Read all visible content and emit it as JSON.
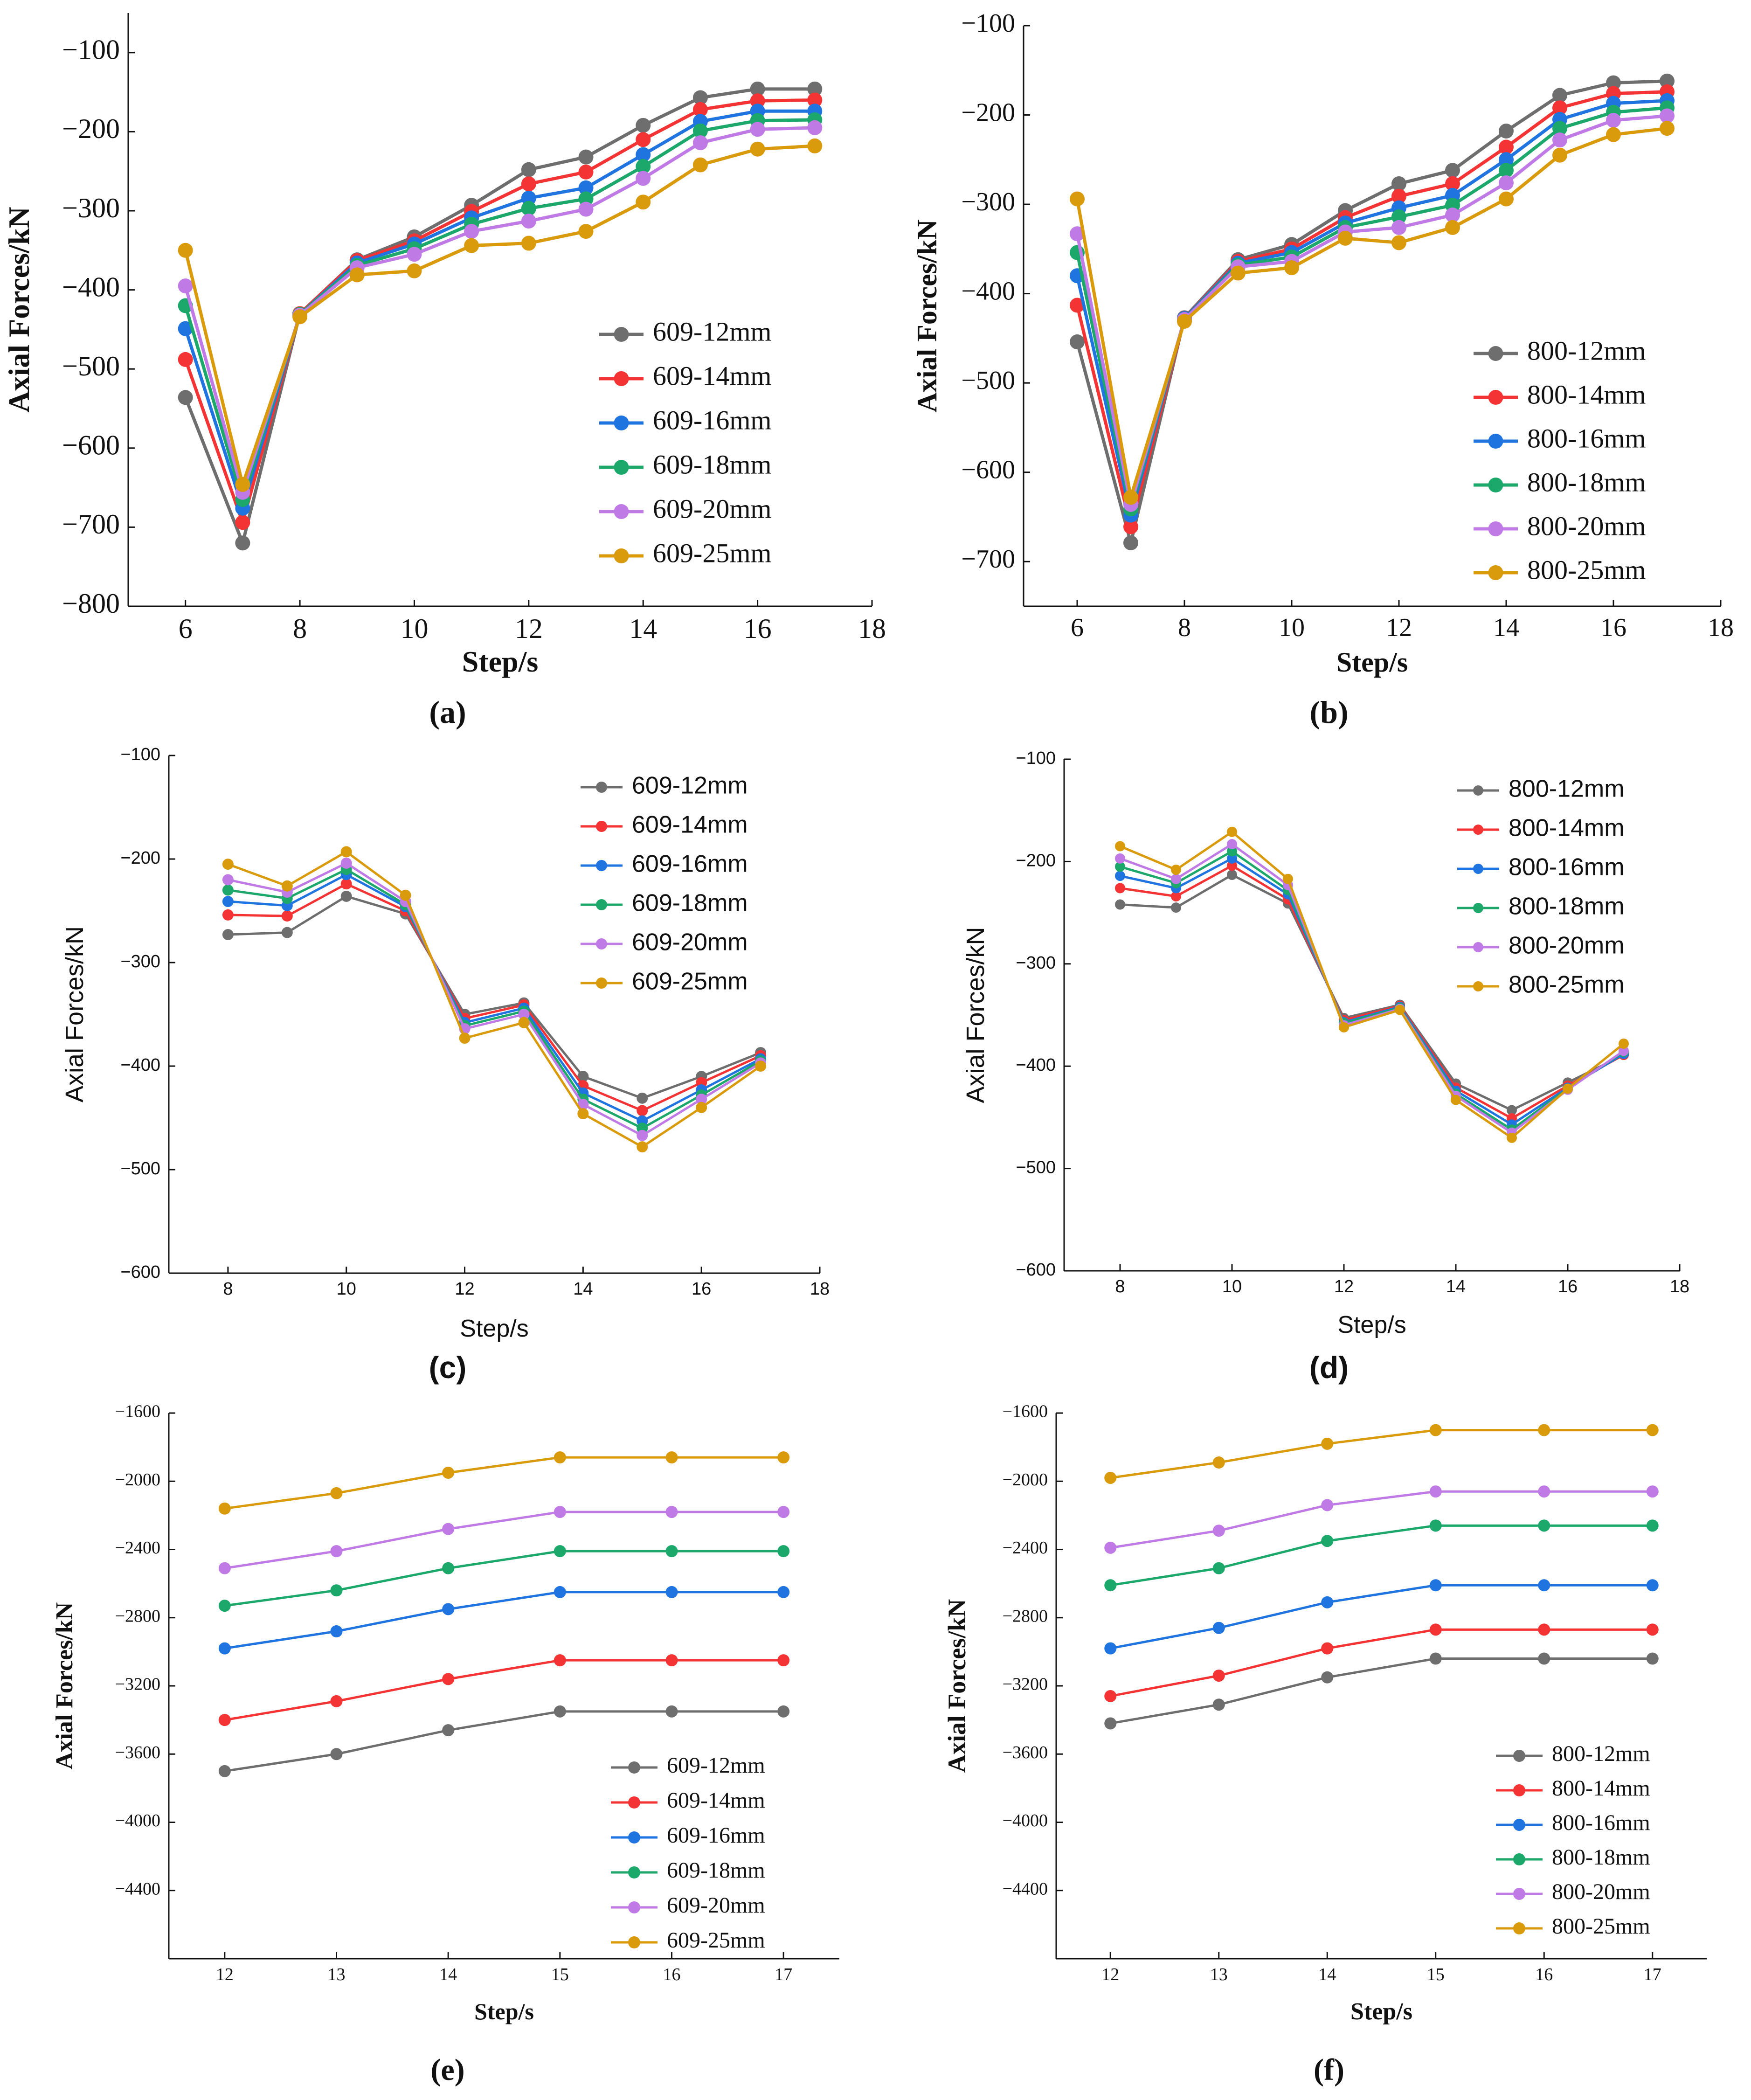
{
  "figure": {
    "colors": {
      "609-12mm": "#6e6e6e",
      "609-14mm": "#f43434",
      "609-16mm": "#1f74e0",
      "609-18mm": "#1ca86a",
      "609-20mm": "#c07ae6",
      "609-25mm": "#d99a0c",
      "800-12mm": "#6e6e6e",
      "800-14mm": "#f43434",
      "800-16mm": "#1f74e0",
      "800-18mm": "#1ca86a",
      "800-20mm": "#c07ae6",
      "800-25mm": "#d99a0c"
    }
  },
  "chart_data": [
    {
      "id": "a",
      "type": "line",
      "caption": "(a)",
      "xlabel": "Step/s",
      "ylabel": "Axial Forces/kN",
      "xlim": [
        5,
        18
      ],
      "ylim": [
        -800,
        -50
      ],
      "xticks": [
        6,
        8,
        10,
        12,
        14,
        16,
        18
      ],
      "yticks": [
        -800,
        -700,
        -600,
        -500,
        -400,
        -300,
        -200,
        -100
      ],
      "legend_position": "bottom-right",
      "x": [
        6,
        7,
        8,
        9,
        10,
        11,
        12,
        13,
        14,
        15,
        16,
        17
      ],
      "series": [
        {
          "name": "609-12mm",
          "values": [
            -536,
            -720,
            -430,
            -362,
            -333,
            -293,
            -248,
            -232,
            -192,
            -157,
            -146,
            -146
          ]
        },
        {
          "name": "609-14mm",
          "values": [
            -488,
            -694,
            -430,
            -363,
            -338,
            -301,
            -266,
            -251,
            -210,
            -172,
            -161,
            -160
          ]
        },
        {
          "name": "609-16mm",
          "values": [
            -449,
            -676,
            -431,
            -366,
            -342,
            -309,
            -284,
            -271,
            -229,
            -187,
            -174,
            -174
          ]
        },
        {
          "name": "609-18mm",
          "values": [
            -420,
            -665,
            -431,
            -369,
            -348,
            -317,
            -297,
            -285,
            -244,
            -199,
            -186,
            -185
          ]
        },
        {
          "name": "609-20mm",
          "values": [
            -395,
            -656,
            -432,
            -372,
            -355,
            -326,
            -313,
            -298,
            -259,
            -214,
            -197,
            -195
          ]
        },
        {
          "name": "609-25mm",
          "values": [
            -350,
            -646,
            -434,
            -381,
            -376,
            -344,
            -341,
            -326,
            -289,
            -242,
            -222,
            -218
          ]
        }
      ]
    },
    {
      "id": "b",
      "type": "line",
      "caption": "(b)",
      "xlabel": "Step/s",
      "ylabel": "Axial Forces/kN",
      "xlim": [
        5,
        18
      ],
      "ylim": [
        -750,
        -100
      ],
      "xticks": [
        6,
        8,
        10,
        12,
        14,
        16,
        18
      ],
      "yticks": [
        -700,
        -600,
        -500,
        -400,
        -300,
        -200,
        -100
      ],
      "legend_position": "bottom-right",
      "x": [
        6,
        7,
        8,
        9,
        10,
        11,
        12,
        13,
        14,
        15,
        16,
        17
      ],
      "series": [
        {
          "name": "800-12mm",
          "values": [
            -454,
            -679,
            -427,
            -362,
            -345,
            -307,
            -277,
            -262,
            -218,
            -178,
            -164,
            -162
          ]
        },
        {
          "name": "800-14mm",
          "values": [
            -413,
            -661,
            -428,
            -364,
            -350,
            -315,
            -291,
            -277,
            -236,
            -192,
            -176,
            -174
          ]
        },
        {
          "name": "800-16mm",
          "values": [
            -380,
            -648,
            -428,
            -366,
            -354,
            -321,
            -304,
            -290,
            -250,
            -205,
            -187,
            -184
          ]
        },
        {
          "name": "800-18mm",
          "values": [
            -354,
            -641,
            -429,
            -368,
            -359,
            -326,
            -314,
            -301,
            -262,
            -215,
            -197,
            -192
          ]
        },
        {
          "name": "800-20mm",
          "values": [
            -333,
            -636,
            -429,
            -370,
            -364,
            -331,
            -326,
            -312,
            -276,
            -228,
            -206,
            -201
          ]
        },
        {
          "name": "800-25mm",
          "values": [
            -294,
            -628,
            -431,
            -377,
            -371,
            -338,
            -343,
            -326,
            -294,
            -245,
            -222,
            -215
          ]
        }
      ]
    },
    {
      "id": "c",
      "type": "line",
      "caption": "(c)",
      "xlabel": "Step/s",
      "ylabel": "Axial Forces/kN",
      "xlim": [
        7,
        18
      ],
      "ylim": [
        -600,
        -100
      ],
      "xticks": [
        8,
        10,
        12,
        14,
        16,
        18
      ],
      "yticks": [
        -600,
        -500,
        -400,
        -300,
        -200,
        -100
      ],
      "legend_position": "top-right",
      "x": [
        8,
        9,
        10,
        11,
        12,
        13,
        14,
        15,
        16,
        17
      ],
      "series": [
        {
          "name": "609-12mm",
          "values": [
            -273,
            -271,
            -236,
            -253,
            -350,
            -339,
            -410,
            -431,
            -410,
            -387
          ]
        },
        {
          "name": "609-14mm",
          "values": [
            -254,
            -255,
            -224,
            -250,
            -354,
            -341,
            -419,
            -443,
            -416,
            -390
          ]
        },
        {
          "name": "609-16mm",
          "values": [
            -241,
            -245,
            -215,
            -246,
            -358,
            -344,
            -426,
            -453,
            -423,
            -393
          ]
        },
        {
          "name": "609-18mm",
          "values": [
            -230,
            -238,
            -210,
            -244,
            -361,
            -347,
            -432,
            -460,
            -428,
            -395
          ]
        },
        {
          "name": "609-20mm",
          "values": [
            -220,
            -232,
            -204,
            -241,
            -364,
            -350,
            -437,
            -467,
            -432,
            -397
          ]
        },
        {
          "name": "609-25mm",
          "values": [
            -205,
            -226,
            -193,
            -235,
            -373,
            -358,
            -446,
            -478,
            -440,
            -400
          ]
        }
      ]
    },
    {
      "id": "d",
      "type": "line",
      "caption": "(d)",
      "xlabel": "Step/s",
      "ylabel": "Axial Forces/kN",
      "xlim": [
        7,
        18
      ],
      "ylim": [
        -600,
        -100
      ],
      "xticks": [
        8,
        10,
        12,
        14,
        16,
        18
      ],
      "yticks": [
        -600,
        -500,
        -400,
        -300,
        -200,
        -100
      ],
      "legend_position": "top-right",
      "x": [
        8,
        9,
        10,
        11,
        12,
        13,
        14,
        15,
        16,
        17
      ],
      "series": [
        {
          "name": "800-12mm",
          "values": [
            -242,
            -245,
            -213,
            -241,
            -353,
            -340,
            -417,
            -443,
            -416,
            -389
          ]
        },
        {
          "name": "800-14mm",
          "values": [
            -226,
            -234,
            -204,
            -237,
            -355,
            -341,
            -421,
            -451,
            -419,
            -389
          ]
        },
        {
          "name": "800-16mm",
          "values": [
            -214,
            -226,
            -197,
            -232,
            -357,
            -342,
            -424,
            -457,
            -421,
            -388
          ]
        },
        {
          "name": "800-18mm",
          "values": [
            -205,
            -221,
            -190,
            -228,
            -358,
            -343,
            -427,
            -462,
            -422,
            -386
          ]
        },
        {
          "name": "800-20mm",
          "values": [
            -197,
            -217,
            -183,
            -223,
            -360,
            -344,
            -429,
            -465,
            -423,
            -385
          ]
        },
        {
          "name": "800-25mm",
          "values": [
            -185,
            -208,
            -171,
            -217,
            -362,
            -345,
            -433,
            -470,
            -422,
            -378
          ]
        }
      ]
    },
    {
      "id": "e",
      "type": "line",
      "caption": "(e)",
      "xlabel": "Step/s",
      "ylabel": "Axial Forces/kN",
      "xlim": [
        11.5,
        17.5
      ],
      "ylim": [
        -4800,
        -1600
      ],
      "xticks": [
        12,
        13,
        14,
        15,
        16,
        17
      ],
      "yticks": [
        -4400,
        -4000,
        -3600,
        -3200,
        -2800,
        -2400,
        -2000,
        -1600
      ],
      "legend_position": "bottom-right",
      "x": [
        12,
        13,
        14,
        15,
        16,
        17
      ],
      "series": [
        {
          "name": "609-12mm",
          "values": [
            -3700,
            -3600,
            -3460,
            -3350,
            -3350,
            -3350
          ]
        },
        {
          "name": "609-14mm",
          "values": [
            -3400,
            -3290,
            -3160,
            -3050,
            -3050,
            -3050
          ]
        },
        {
          "name": "609-16mm",
          "values": [
            -2980,
            -2880,
            -2750,
            -2650,
            -2650,
            -2650
          ]
        },
        {
          "name": "609-18mm",
          "values": [
            -2730,
            -2640,
            -2510,
            -2410,
            -2410,
            -2410
          ]
        },
        {
          "name": "609-20mm",
          "values": [
            -2510,
            -2410,
            -2280,
            -2180,
            -2180,
            -2180
          ]
        },
        {
          "name": "609-25mm",
          "values": [
            -2160,
            -2070,
            -1950,
            -1860,
            -1860,
            -1860
          ]
        }
      ]
    },
    {
      "id": "f",
      "type": "line",
      "caption": "(f)",
      "xlabel": "Step/s",
      "ylabel": "Axial Forces/kN",
      "xlim": [
        11.5,
        17.5
      ],
      "ylim": [
        -4800,
        -1600
      ],
      "xticks": [
        12,
        13,
        14,
        15,
        16,
        17
      ],
      "yticks": [
        -4400,
        -4000,
        -3600,
        -3200,
        -2800,
        -2400,
        -2000,
        -1600
      ],
      "legend_position": "bottom-right",
      "x": [
        12,
        13,
        14,
        15,
        16,
        17
      ],
      "series": [
        {
          "name": "800-12mm",
          "values": [
            -3420,
            -3310,
            -3150,
            -3040,
            -3040,
            -3040
          ]
        },
        {
          "name": "800-14mm",
          "values": [
            -3260,
            -3140,
            -2980,
            -2870,
            -2870,
            -2870
          ]
        },
        {
          "name": "800-16mm",
          "values": [
            -2980,
            -2860,
            -2710,
            -2610,
            -2610,
            -2610
          ]
        },
        {
          "name": "800-18mm",
          "values": [
            -2610,
            -2510,
            -2350,
            -2260,
            -2260,
            -2260
          ]
        },
        {
          "name": "800-20mm",
          "values": [
            -2390,
            -2290,
            -2140,
            -2060,
            -2060,
            -2060
          ]
        },
        {
          "name": "800-25mm",
          "values": [
            -1980,
            -1890,
            -1780,
            -1700,
            -1700,
            -1700
          ]
        }
      ]
    }
  ]
}
